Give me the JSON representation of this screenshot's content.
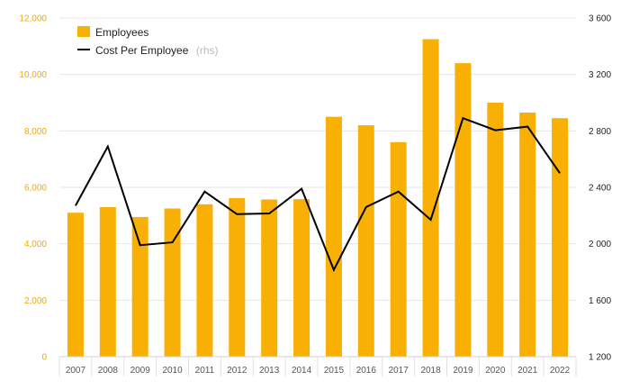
{
  "chart_data": {
    "type": "bar",
    "categories": [
      "2007",
      "2008",
      "2009",
      "2010",
      "2011",
      "2012",
      "2013",
      "2014",
      "2015",
      "2016",
      "2017",
      "2018",
      "2019",
      "2020",
      "2021",
      "2022"
    ],
    "series": [
      {
        "name": "Employees",
        "type": "bar",
        "axis": "left",
        "color": "#f8b004",
        "values": [
          5100,
          5300,
          4950,
          5250,
          5400,
          5620,
          5570,
          5580,
          8500,
          8200,
          7600,
          11250,
          10400,
          9000,
          8650,
          8450
        ]
      },
      {
        "name": "Cost Per Employee",
        "type": "line",
        "axis": "right",
        "color": "#000000",
        "values": [
          2270,
          2690,
          1990,
          2010,
          2370,
          2210,
          2215,
          2390,
          1815,
          2260,
          2370,
          2170,
          2890,
          2805,
          2830,
          2500
        ]
      }
    ],
    "legend": {
      "position": "top-left",
      "items": [
        {
          "label": "Employees",
          "suffix": ""
        },
        {
          "label": "Cost Per Employee",
          "suffix": "(rhs)"
        }
      ]
    },
    "y_left": {
      "range": [
        0,
        12000
      ],
      "ticks": [
        0,
        2000,
        4000,
        6000,
        8000,
        10000,
        12000
      ],
      "tick_labels": [
        "0",
        "2,000",
        "4,000",
        "6,000",
        "8,000",
        "10,000",
        "12,000"
      ],
      "color": "#f5a800"
    },
    "y_right": {
      "range": [
        1200,
        3600
      ],
      "ticks": [
        1200,
        1600,
        2000,
        2400,
        2800,
        3200,
        3600
      ],
      "tick_labels": [
        "1 200",
        "1 600",
        "2 000",
        "2 400",
        "2 800",
        "3 200",
        "3 600"
      ],
      "color": "#222222"
    },
    "grid": true,
    "title": "",
    "xlabel": "",
    "ylabel": ""
  }
}
